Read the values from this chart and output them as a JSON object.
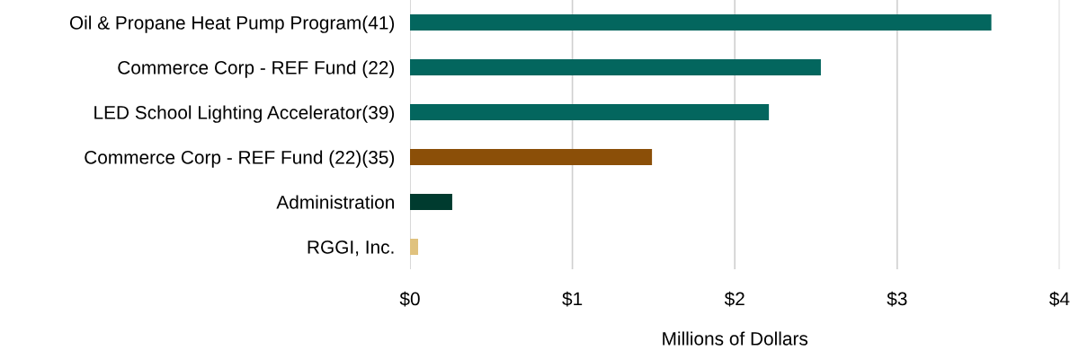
{
  "chart_data": {
    "type": "bar",
    "orientation": "horizontal",
    "xlabel": "Millions of Dollars",
    "categories": [
      "Oil & Propane Heat Pump Program(41)",
      "Commerce Corp - REF Fund (22)",
      "LED School Lighting Accelerator(39)",
      "Commerce Corp - REF Fund (22)(35)",
      "Administration",
      "RGGI, Inc."
    ],
    "values": [
      3.58,
      2.53,
      2.21,
      1.49,
      0.26,
      0.05
    ],
    "colors": [
      "#03665e",
      "#03665e",
      "#03665e",
      "#8b4f08",
      "#003b2f",
      "#e0c27e"
    ],
    "xlim": [
      0,
      4
    ],
    "xticks": [
      {
        "value": 0,
        "label": "$0"
      },
      {
        "value": 1,
        "label": "$1"
      },
      {
        "value": 2,
        "label": "$2"
      },
      {
        "value": 3,
        "label": "$3"
      },
      {
        "value": 4,
        "label": "$4"
      }
    ],
    "grid": "x",
    "legend": false
  }
}
